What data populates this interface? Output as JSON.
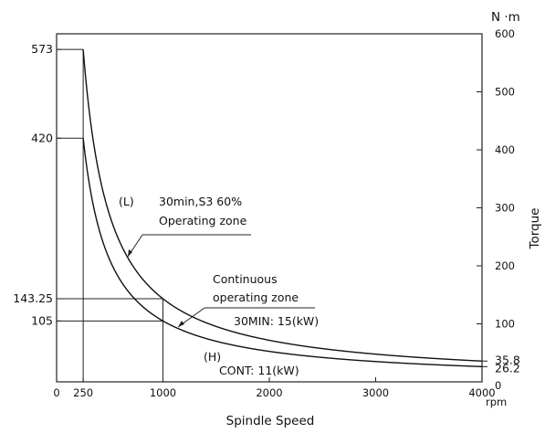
{
  "chart_data": {
    "type": "line",
    "title": "",
    "xlabel": "Spindle Speed",
    "xunit": "rpm",
    "ylabel": "Torque",
    "yunit": "N ·m",
    "xlim": [
      0,
      4000
    ],
    "ylim": [
      0,
      600
    ],
    "grid": false,
    "legend": "none",
    "x_ticks": [
      {
        "value": 0,
        "label": "0"
      },
      {
        "value": 250,
        "label": "250"
      },
      {
        "value": 1000,
        "label": "1000"
      },
      {
        "value": 2000,
        "label": "2000"
      },
      {
        "value": 3000,
        "label": "3000"
      },
      {
        "value": 4000,
        "label": "4000"
      }
    ],
    "right_ticks": [
      {
        "value": 0,
        "label": "0"
      },
      {
        "value": 100,
        "label": "100"
      },
      {
        "value": 200,
        "label": "200"
      },
      {
        "value": 300,
        "label": "300"
      },
      {
        "value": 400,
        "label": "400"
      },
      {
        "value": 500,
        "label": "500"
      },
      {
        "value": 600,
        "label": "600"
      }
    ],
    "left_ticks": [
      {
        "value": 573,
        "label": "573"
      },
      {
        "value": 420,
        "label": "420"
      },
      {
        "value": 143.25,
        "label": "143.25"
      },
      {
        "value": 105,
        "label": "105"
      }
    ],
    "end_labels": [
      {
        "value": 35.8,
        "label": "35.8"
      },
      {
        "value": 26.2,
        "label": "26.2"
      }
    ],
    "reference_lines": [
      {
        "x_from": 0,
        "x_to": 250,
        "y": 573
      },
      {
        "x_from": 0,
        "x_to": 250,
        "y": 420
      },
      {
        "x_from": 0,
        "x_to": 1000,
        "y": 143.25
      },
      {
        "x_from": 0,
        "x_to": 1000,
        "y": 105
      },
      {
        "x": 250,
        "y_from": 0,
        "y_to": 573
      },
      {
        "x": 1000,
        "y_from": 0,
        "y_to": 143.25
      }
    ],
    "series": [
      {
        "id": "s3",
        "x": [
          0,
          250,
          400,
          600,
          800,
          1000,
          1500,
          2000,
          2500,
          3000,
          3500,
          4000
        ],
        "y": [
          573,
          573,
          358.1,
          238.7,
          179.1,
          143.25,
          95.5,
          71.6,
          57.3,
          47.8,
          40.9,
          35.8
        ]
      },
      {
        "id": "cont",
        "x": [
          0,
          250,
          400,
          600,
          800,
          1000,
          1500,
          2000,
          2500,
          3000,
          3500,
          4000
        ],
        "y": [
          420,
          420,
          262.5,
          175,
          131.3,
          105,
          70,
          52.5,
          42,
          35,
          30,
          26.2
        ]
      }
    ],
    "annotations": [
      {
        "id": "s3-mode",
        "text": "(L)"
      },
      {
        "id": "s3-title",
        "text": "30min,S3  60%"
      },
      {
        "id": "s3-zone",
        "text": "Operating  zone"
      },
      {
        "id": "cont-title",
        "text": "Continuous"
      },
      {
        "id": "cont-zone",
        "text": "operating  zone"
      },
      {
        "id": "power-30min",
        "text": "30MIN:  15(kW)"
      },
      {
        "id": "mode-h",
        "text": "(H)"
      },
      {
        "id": "power-cont",
        "text": "CONT:  11(kW)"
      }
    ]
  }
}
